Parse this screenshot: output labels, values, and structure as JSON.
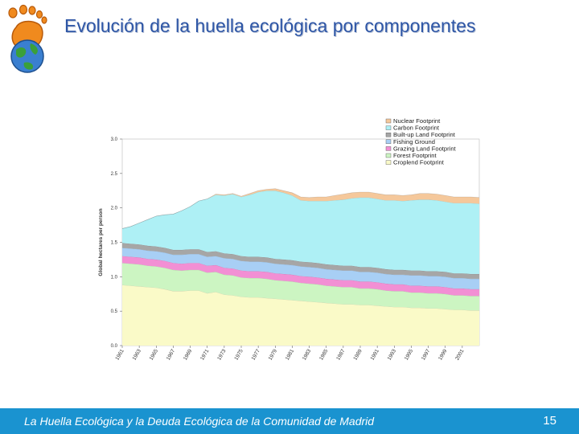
{
  "slide": {
    "title": "Evolución de la huella ecológica por componentes",
    "footer_text": "La Huella Ecológica y la Deuda Ecológica de la Comunidad de Madrid",
    "page_number": "15"
  },
  "logo": {
    "icon": "earth-footprint-logo-icon"
  },
  "colors": {
    "title": "#2e56a6",
    "footer_bg": "#1a93d0",
    "nuclear": "#f5c89b",
    "carbon": "#aef0f5",
    "builtup": "#a6a6a6",
    "fishing": "#a8cff5",
    "grazing": "#f28fd4",
    "forest": "#ccf5c2",
    "cropland": "#fafac8"
  },
  "chart_data": {
    "type": "area",
    "stacked": true,
    "title": "",
    "xlabel": "",
    "ylabel": "Global hectares per person",
    "ylim": [
      0,
      3.0
    ],
    "yticks": [
      "0.0",
      "0.5",
      "1.0",
      "1.5",
      "2.0",
      "2.5",
      "3.0"
    ],
    "xlim": [
      1961,
      2003
    ],
    "xticks": [
      "1961",
      "1963",
      "1965",
      "1967",
      "1969",
      "1971",
      "1973",
      "1975",
      "1977",
      "1979",
      "1981",
      "1983",
      "1985",
      "1987",
      "1989",
      "1991",
      "1993",
      "1995",
      "1997",
      "1999",
      "2001"
    ],
    "legend_position": "top-right",
    "x": [
      1961,
      1962,
      1963,
      1964,
      1965,
      1966,
      1967,
      1968,
      1969,
      1970,
      1971,
      1972,
      1973,
      1974,
      1975,
      1976,
      1977,
      1978,
      1979,
      1980,
      1981,
      1982,
      1983,
      1984,
      1985,
      1986,
      1987,
      1988,
      1989,
      1990,
      1991,
      1992,
      1993,
      1994,
      1995,
      1996,
      1997,
      1998,
      1999,
      2000,
      2001,
      2002,
      2003
    ],
    "series": [
      {
        "name": "Croplend Footprint",
        "color_key": "cropland",
        "values": [
          0.88,
          0.87,
          0.86,
          0.85,
          0.84,
          0.82,
          0.79,
          0.79,
          0.8,
          0.8,
          0.76,
          0.78,
          0.74,
          0.73,
          0.71,
          0.7,
          0.7,
          0.69,
          0.68,
          0.67,
          0.66,
          0.65,
          0.64,
          0.63,
          0.62,
          0.61,
          0.6,
          0.6,
          0.59,
          0.59,
          0.58,
          0.57,
          0.56,
          0.56,
          0.55,
          0.55,
          0.54,
          0.54,
          0.53,
          0.52,
          0.52,
          0.51,
          0.51
        ]
      },
      {
        "name": "Forest Footprint",
        "color_key": "forest",
        "values": [
          0.32,
          0.32,
          0.32,
          0.31,
          0.31,
          0.31,
          0.31,
          0.3,
          0.3,
          0.3,
          0.3,
          0.29,
          0.29,
          0.29,
          0.28,
          0.28,
          0.28,
          0.28,
          0.27,
          0.27,
          0.27,
          0.26,
          0.26,
          0.26,
          0.25,
          0.25,
          0.25,
          0.25,
          0.24,
          0.24,
          0.24,
          0.23,
          0.23,
          0.23,
          0.22,
          0.22,
          0.22,
          0.22,
          0.22,
          0.21,
          0.21,
          0.21,
          0.21
        ]
      },
      {
        "name": "Grazing Land Footprint",
        "color_key": "grazing",
        "values": [
          0.1,
          0.1,
          0.1,
          0.1,
          0.1,
          0.1,
          0.1,
          0.1,
          0.1,
          0.1,
          0.1,
          0.1,
          0.1,
          0.1,
          0.1,
          0.1,
          0.1,
          0.1,
          0.1,
          0.1,
          0.1,
          0.1,
          0.1,
          0.1,
          0.1,
          0.1,
          0.1,
          0.1,
          0.1,
          0.1,
          0.1,
          0.1,
          0.1,
          0.1,
          0.1,
          0.1,
          0.1,
          0.1,
          0.1,
          0.1,
          0.1,
          0.1,
          0.1
        ]
      },
      {
        "name": "Fishing Ground",
        "color_key": "fishing",
        "values": [
          0.12,
          0.12,
          0.12,
          0.12,
          0.12,
          0.12,
          0.12,
          0.13,
          0.13,
          0.13,
          0.13,
          0.13,
          0.14,
          0.14,
          0.14,
          0.14,
          0.14,
          0.14,
          0.14,
          0.14,
          0.14,
          0.14,
          0.14,
          0.14,
          0.14,
          0.14,
          0.14,
          0.14,
          0.14,
          0.14,
          0.14,
          0.14,
          0.14,
          0.14,
          0.15,
          0.15,
          0.15,
          0.15,
          0.15,
          0.15,
          0.15,
          0.15,
          0.15
        ]
      },
      {
        "name": "Built-up Land Footprint",
        "color_key": "builtup",
        "values": [
          0.07,
          0.07,
          0.07,
          0.07,
          0.07,
          0.07,
          0.07,
          0.07,
          0.07,
          0.07,
          0.07,
          0.07,
          0.07,
          0.07,
          0.07,
          0.07,
          0.07,
          0.07,
          0.07,
          0.07,
          0.07,
          0.07,
          0.07,
          0.07,
          0.07,
          0.07,
          0.07,
          0.07,
          0.07,
          0.07,
          0.07,
          0.07,
          0.07,
          0.07,
          0.07,
          0.07,
          0.07,
          0.07,
          0.07,
          0.07,
          0.07,
          0.07,
          0.07
        ]
      },
      {
        "name": "Carbon Footprint",
        "color_key": "carbon",
        "values": [
          0.21,
          0.25,
          0.31,
          0.38,
          0.44,
          0.48,
          0.52,
          0.57,
          0.62,
          0.7,
          0.77,
          0.82,
          0.84,
          0.87,
          0.86,
          0.9,
          0.94,
          0.97,
          0.99,
          0.97,
          0.94,
          0.89,
          0.89,
          0.9,
          0.92,
          0.94,
          0.96,
          0.98,
          1.01,
          1.01,
          1.0,
          1.0,
          1.01,
          1.0,
          1.02,
          1.03,
          1.04,
          1.03,
          1.02,
          1.02,
          1.02,
          1.03,
          1.02
        ]
      },
      {
        "name": "Nuclear Footprint",
        "color_key": "nuclear",
        "values": [
          0.0,
          0.0,
          0.0,
          0.0,
          0.0,
          0.0,
          0.0,
          0.0,
          0.0,
          0.0,
          0.0,
          0.01,
          0.01,
          0.01,
          0.01,
          0.02,
          0.02,
          0.02,
          0.03,
          0.03,
          0.04,
          0.05,
          0.05,
          0.06,
          0.06,
          0.07,
          0.08,
          0.08,
          0.08,
          0.08,
          0.08,
          0.08,
          0.08,
          0.08,
          0.08,
          0.09,
          0.09,
          0.09,
          0.09,
          0.09,
          0.09,
          0.09,
          0.09
        ]
      }
    ],
    "legend_order": [
      "Nuclear Footprint",
      "Carbon Footprint",
      "Built-up Land Footprint",
      "Fishing Ground",
      "Grazing Land Footprint",
      "Forest Footprint",
      "Croplend Footprint"
    ]
  }
}
